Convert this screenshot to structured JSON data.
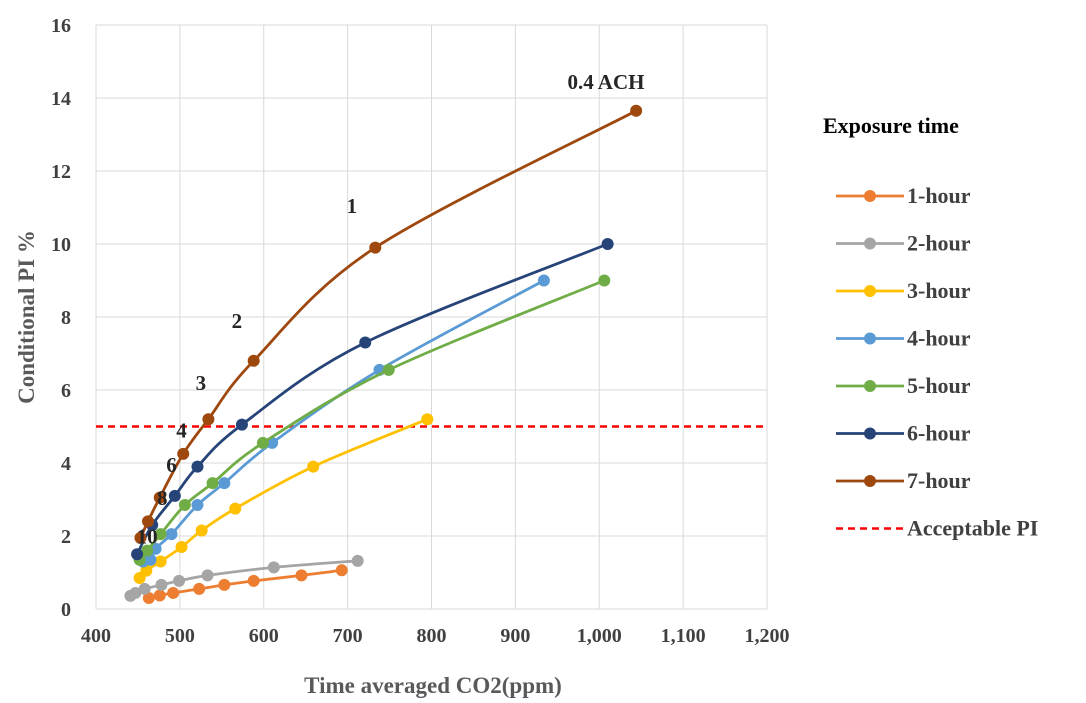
{
  "chart_data": {
    "type": "line",
    "title": "",
    "xlabel": "Time averaged CO2(ppm)",
    "ylabel": "Conditional  PI %",
    "xlim": [
      400,
      1200
    ],
    "ylim": [
      0,
      16
    ],
    "x_ticks": [
      400,
      500,
      600,
      700,
      800,
      900,
      1000,
      1100,
      1200
    ],
    "x_tick_labels": [
      "400",
      "500",
      "600",
      "700",
      "800",
      "900",
      "1,000",
      "1,100",
      "1,200"
    ],
    "y_ticks": [
      0,
      2,
      4,
      6,
      8,
      10,
      12,
      14,
      16
    ],
    "y_tick_labels": [
      "0",
      "2",
      "4",
      "6",
      "8",
      "10",
      "12",
      "14",
      "16"
    ],
    "grid": true,
    "legend_position": "right",
    "legend_title": "Exposure time",
    "series": [
      {
        "name": "1-hour",
        "color": "#ED7D31",
        "x": [
          463,
          476,
          492,
          523,
          553,
          588,
          645,
          693
        ],
        "y": [
          0.3,
          0.37,
          0.44,
          0.55,
          0.66,
          0.77,
          0.92,
          1.06
        ]
      },
      {
        "name": "2-hour",
        "color": "#A5A5A5",
        "x": [
          441,
          447,
          458,
          478,
          499,
          533,
          612,
          712
        ],
        "y": [
          0.36,
          0.44,
          0.55,
          0.66,
          0.77,
          0.92,
          1.14,
          1.32
        ]
      },
      {
        "name": "3-hour",
        "color": "#FFC000",
        "x": [
          452,
          460,
          477,
          502,
          526,
          566,
          659,
          795
        ],
        "y": [
          0.85,
          1.05,
          1.3,
          1.7,
          2.15,
          2.75,
          3.9,
          5.2
        ]
      },
      {
        "name": "4-hour",
        "color": "#5B9BD5",
        "x": [
          456,
          465,
          471,
          490,
          521,
          553,
          610,
          738,
          934
        ],
        "y": [
          1.3,
          1.35,
          1.65,
          2.05,
          2.85,
          3.45,
          4.55,
          6.55,
          9.0
        ]
      },
      {
        "name": "5-hour",
        "color": "#70AD47",
        "x": [
          452,
          461,
          477,
          506,
          539,
          599,
          749,
          1006
        ],
        "y": [
          1.35,
          1.6,
          2.05,
          2.85,
          3.45,
          4.55,
          6.55,
          9.0
        ]
      },
      {
        "name": "6-hour",
        "color": "#264478",
        "x": [
          449,
          467,
          494,
          521,
          574,
          721,
          1010
        ],
        "y": [
          1.5,
          2.3,
          3.1,
          3.9,
          5.05,
          7.3,
          10.0
        ]
      },
      {
        "name": "7-hour",
        "color": "#9E480E",
        "x": [
          453,
          462,
          476,
          504,
          534,
          588,
          733,
          1044
        ],
        "y": [
          1.95,
          2.4,
          3.05,
          4.25,
          5.2,
          6.8,
          9.9,
          13.65
        ]
      }
    ],
    "reference_lines": [
      {
        "name": "Acceptable PI",
        "y": 5,
        "color": "#FF0000",
        "style": "dashed"
      }
    ],
    "annotations": [
      {
        "text": "0.4  ACH",
        "x": 1008,
        "y": 14.25
      },
      {
        "text": "1",
        "x": 705,
        "y": 10.85
      },
      {
        "text": "2",
        "x": 568,
        "y": 7.7
      },
      {
        "text": "3",
        "x": 525,
        "y": 6.0
      },
      {
        "text": "4",
        "x": 502,
        "y": 4.7
      },
      {
        "text": "6",
        "x": 490,
        "y": 3.75
      },
      {
        "text": "8",
        "x": 479,
        "y": 2.85
      },
      {
        "text": "10",
        "x": 461,
        "y": 1.8
      }
    ]
  }
}
